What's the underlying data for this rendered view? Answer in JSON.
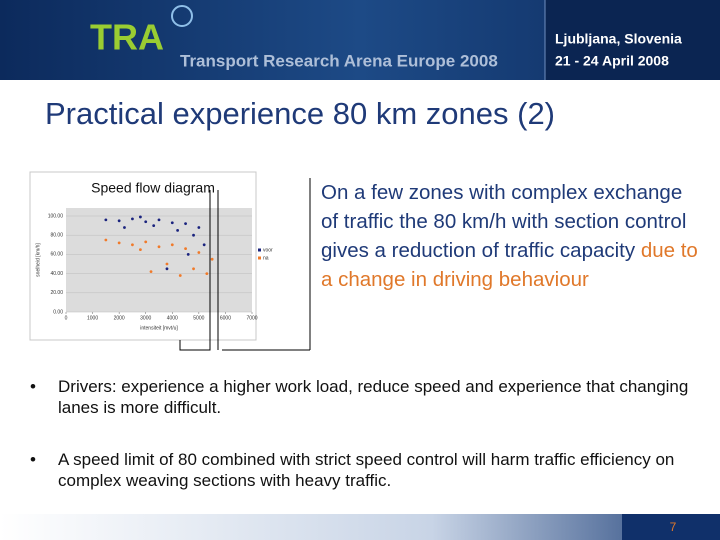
{
  "header": {
    "logo": "TRA",
    "event": "Transport Research Arena Europe 2008",
    "location": "Ljubljana, Slovenia",
    "dates": "21 - 24 April 2008"
  },
  "title": "Practical experience 80 km zones (2)",
  "figure": {
    "caption": "Speed flow diagram",
    "y_label": "snelheid [km/h]",
    "x_label": "intensiteit [mvt/u]",
    "ylim": [
      0,
      100
    ],
    "xlim": [
      0,
      7000
    ],
    "yticks": [
      {
        "value": 0,
        "label": "0.00"
      },
      {
        "value": 20,
        "label": "20.00"
      },
      {
        "value": 40,
        "label": "40.00"
      },
      {
        "value": 60,
        "label": "60.00"
      },
      {
        "value": 80,
        "label": "80.00"
      },
      {
        "value": 100,
        "label": "100.00"
      }
    ],
    "xticks": [
      0,
      1000,
      2000,
      3000,
      4000,
      5000,
      6000,
      7000
    ],
    "series": [
      {
        "name": "voor",
        "color": "#1a237e",
        "points": [
          [
            1500,
            96
          ],
          [
            2000,
            95
          ],
          [
            2500,
            97
          ],
          [
            3000,
            94
          ],
          [
            3500,
            96
          ],
          [
            4000,
            93
          ],
          [
            4500,
            92
          ],
          [
            5000,
            88
          ],
          [
            4800,
            80
          ],
          [
            4200,
            85
          ],
          [
            2800,
            99
          ],
          [
            3300,
            90
          ],
          [
            5200,
            70
          ],
          [
            4600,
            60
          ],
          [
            3800,
            45
          ],
          [
            2200,
            88
          ]
        ]
      },
      {
        "name": "na",
        "color": "#f07a2a",
        "points": [
          [
            2000,
            72
          ],
          [
            2500,
            70
          ],
          [
            3000,
            73
          ],
          [
            3500,
            68
          ],
          [
            4000,
            70
          ],
          [
            4500,
            66
          ],
          [
            5000,
            62
          ],
          [
            5500,
            55
          ],
          [
            4800,
            45
          ],
          [
            4300,
            38
          ],
          [
            3800,
            50
          ],
          [
            2800,
            65
          ],
          [
            5300,
            40
          ],
          [
            1500,
            75
          ],
          [
            3200,
            42
          ]
        ]
      }
    ]
  },
  "paragraph": {
    "text": "On a few zones with complex exchange of traffic the 80 km/h with section control gives a reduction of traffic capacity",
    "highlight": "due to a change in driving behaviour"
  },
  "bullets": [
    "Drivers: experience a higher work load, reduce speed and experience that changing lanes is more difficult.",
    "A speed limit of 80 combined with strict speed control will harm traffic efficiency on complex weaving sections with heavy traffic."
  ],
  "page_number": "7"
}
